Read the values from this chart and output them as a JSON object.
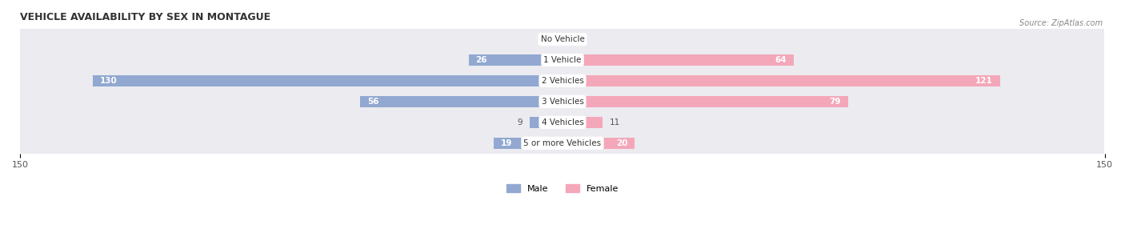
{
  "title": "VEHICLE AVAILABILITY BY SEX IN MONTAGUE",
  "source": "Source: ZipAtlas.com",
  "categories": [
    "No Vehicle",
    "1 Vehicle",
    "2 Vehicles",
    "3 Vehicles",
    "4 Vehicles",
    "5 or more Vehicles"
  ],
  "male_values": [
    0,
    26,
    130,
    56,
    9,
    19
  ],
  "female_values": [
    0,
    64,
    121,
    79,
    11,
    20
  ],
  "male_color": "#92a8d1",
  "female_color": "#f4a7b9",
  "bar_bg_color": "#f0f0f5",
  "max_val": 150,
  "label_color_inside": "#ffffff",
  "label_color_outside": "#555555",
  "background_color": "#ffffff",
  "row_bg_color": "#ebebf0",
  "center_label_bg": "#ffffff",
  "bar_height": 0.55,
  "inside_threshold": 15
}
